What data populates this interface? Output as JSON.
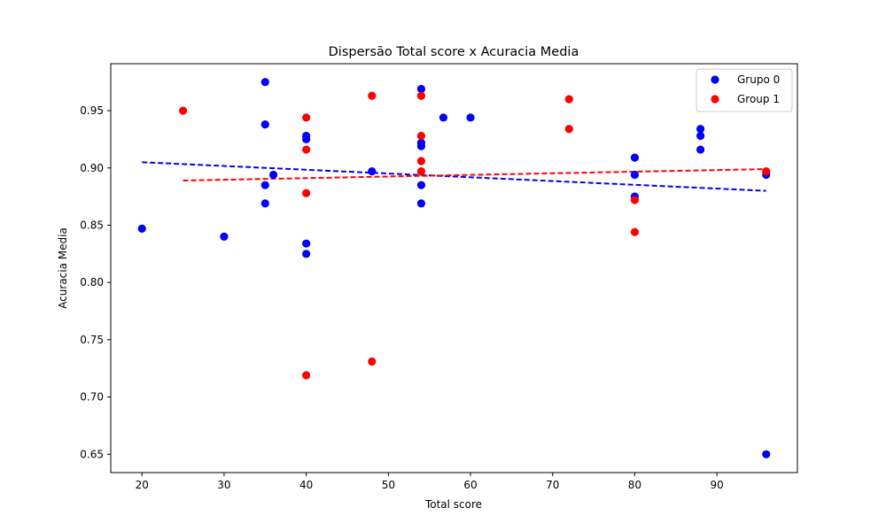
{
  "chart_data": {
    "type": "scatter",
    "title": "Dispersão Total score x Acuracia Media",
    "xlabel": "Total score",
    "ylabel": "Acuracia Media",
    "xlim": [
      16.2,
      99.8
    ],
    "ylim": [
      0.634,
      0.991
    ],
    "xticks": [
      20,
      30,
      40,
      50,
      60,
      70,
      80,
      90
    ],
    "yticks": [
      0.65,
      0.7,
      0.75,
      0.8,
      0.85,
      0.9,
      0.95
    ],
    "xtick_labels": [
      "20",
      "30",
      "40",
      "50",
      "60",
      "70",
      "80",
      "90"
    ],
    "ytick_labels": [
      "0.65",
      "0.70",
      "0.75",
      "0.80",
      "0.85",
      "0.90",
      "0.95"
    ],
    "legend_position": "top-right",
    "series": [
      {
        "name": "Grupo 0",
        "color": "#0000ff",
        "x": [
          20,
          30,
          35,
          35,
          35,
          35,
          36,
          40,
          40,
          40,
          40,
          48,
          54,
          54,
          54,
          54,
          54,
          56.7,
          60,
          80,
          80,
          80,
          88,
          88,
          88,
          96,
          96
        ],
        "y": [
          0.847,
          0.84,
          0.975,
          0.938,
          0.885,
          0.869,
          0.894,
          0.928,
          0.925,
          0.834,
          0.825,
          0.897,
          0.969,
          0.922,
          0.919,
          0.885,
          0.869,
          0.944,
          0.944,
          0.909,
          0.894,
          0.875,
          0.934,
          0.928,
          0.916,
          0.894,
          0.65
        ],
        "trend": {
          "x": [
            20,
            96
          ],
          "y": [
            0.905,
            0.88
          ]
        }
      },
      {
        "name": "Group 1",
        "color": "#ff0000",
        "x": [
          25,
          40,
          40,
          40,
          40,
          48,
          48,
          54,
          54,
          54,
          54,
          72,
          72,
          80,
          80,
          96
        ],
        "y": [
          0.95,
          0.944,
          0.916,
          0.878,
          0.719,
          0.963,
          0.731,
          0.963,
          0.928,
          0.906,
          0.897,
          0.96,
          0.934,
          0.872,
          0.844,
          0.897
        ],
        "trend": {
          "x": [
            25,
            96
          ],
          "y": [
            0.889,
            0.899
          ]
        }
      }
    ]
  }
}
